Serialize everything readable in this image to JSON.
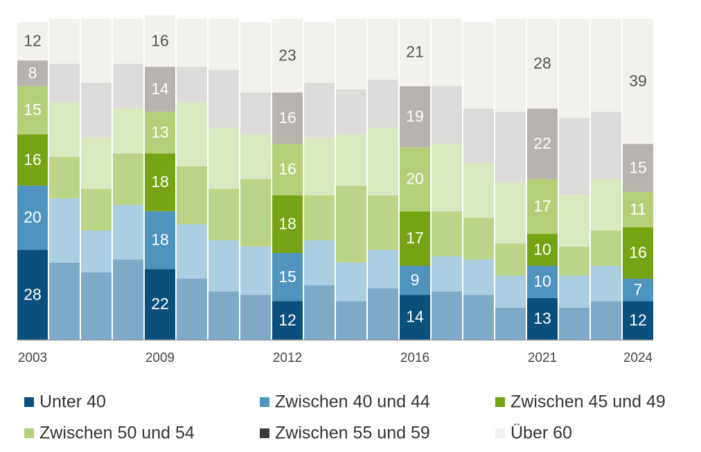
{
  "chart_data": {
    "type": "stacked_bar",
    "categories": [
      "2003",
      null,
      null,
      null,
      "2009",
      null,
      null,
      null,
      "2012",
      null,
      null,
      null,
      "2016",
      null,
      null,
      null,
      "2021",
      null,
      null,
      "2024"
    ],
    "ylim": [
      0,
      100
    ],
    "series": [
      {
        "name": "Unter 40",
        "color": "#0b4f7c",
        "faded_color": "#7eaac8",
        "values": [
          28,
          24,
          21,
          25,
          22,
          19,
          15,
          14,
          12,
          17,
          12,
          16,
          14,
          15,
          14,
          10,
          13,
          10,
          12,
          12
        ]
      },
      {
        "name": "Zwischen 40 und 44",
        "color": "#4f93bf",
        "faded_color": "#abcee1",
        "values": [
          20,
          20,
          13,
          17,
          18,
          17,
          16,
          15,
          15,
          14,
          12,
          12,
          9,
          11,
          11,
          10,
          10,
          10,
          11,
          7
        ]
      },
      {
        "name": "Zwischen 45 und 49",
        "color": "#76a313",
        "faded_color": "#bcd487",
        "values": [
          16,
          13,
          13,
          16,
          18,
          18,
          16,
          21,
          18,
          14,
          24,
          17,
          17,
          14,
          13,
          10,
          10,
          9,
          11,
          16
        ]
      },
      {
        "name": "Zwischen 50 und 54",
        "color": "#b4cf78",
        "faded_color": "#dae8bf",
        "values": [
          15,
          17,
          16,
          14,
          13,
          20,
          19,
          14,
          16,
          18,
          16,
          21,
          20,
          21,
          17,
          19,
          17,
          16,
          16,
          11
        ]
      },
      {
        "name": "Zwischen 55 und 59",
        "color": "#b8b3ae",
        "faded_color": "#dddbd9",
        "legend_color": "#3a3a3a",
        "values": [
          8,
          12,
          17,
          14,
          14,
          11,
          18,
          13,
          16,
          17,
          14,
          15,
          19,
          18,
          17,
          22,
          22,
          24,
          21,
          15
        ]
      },
      {
        "name": "Über 60",
        "color": "#f3f1ee",
        "faded_color": "#f3f1ee",
        "values": [
          12,
          14,
          20,
          14,
          16,
          15,
          16,
          22,
          23,
          19,
          22,
          19,
          21,
          21,
          27,
          29,
          28,
          31,
          29,
          39
        ]
      }
    ]
  }
}
